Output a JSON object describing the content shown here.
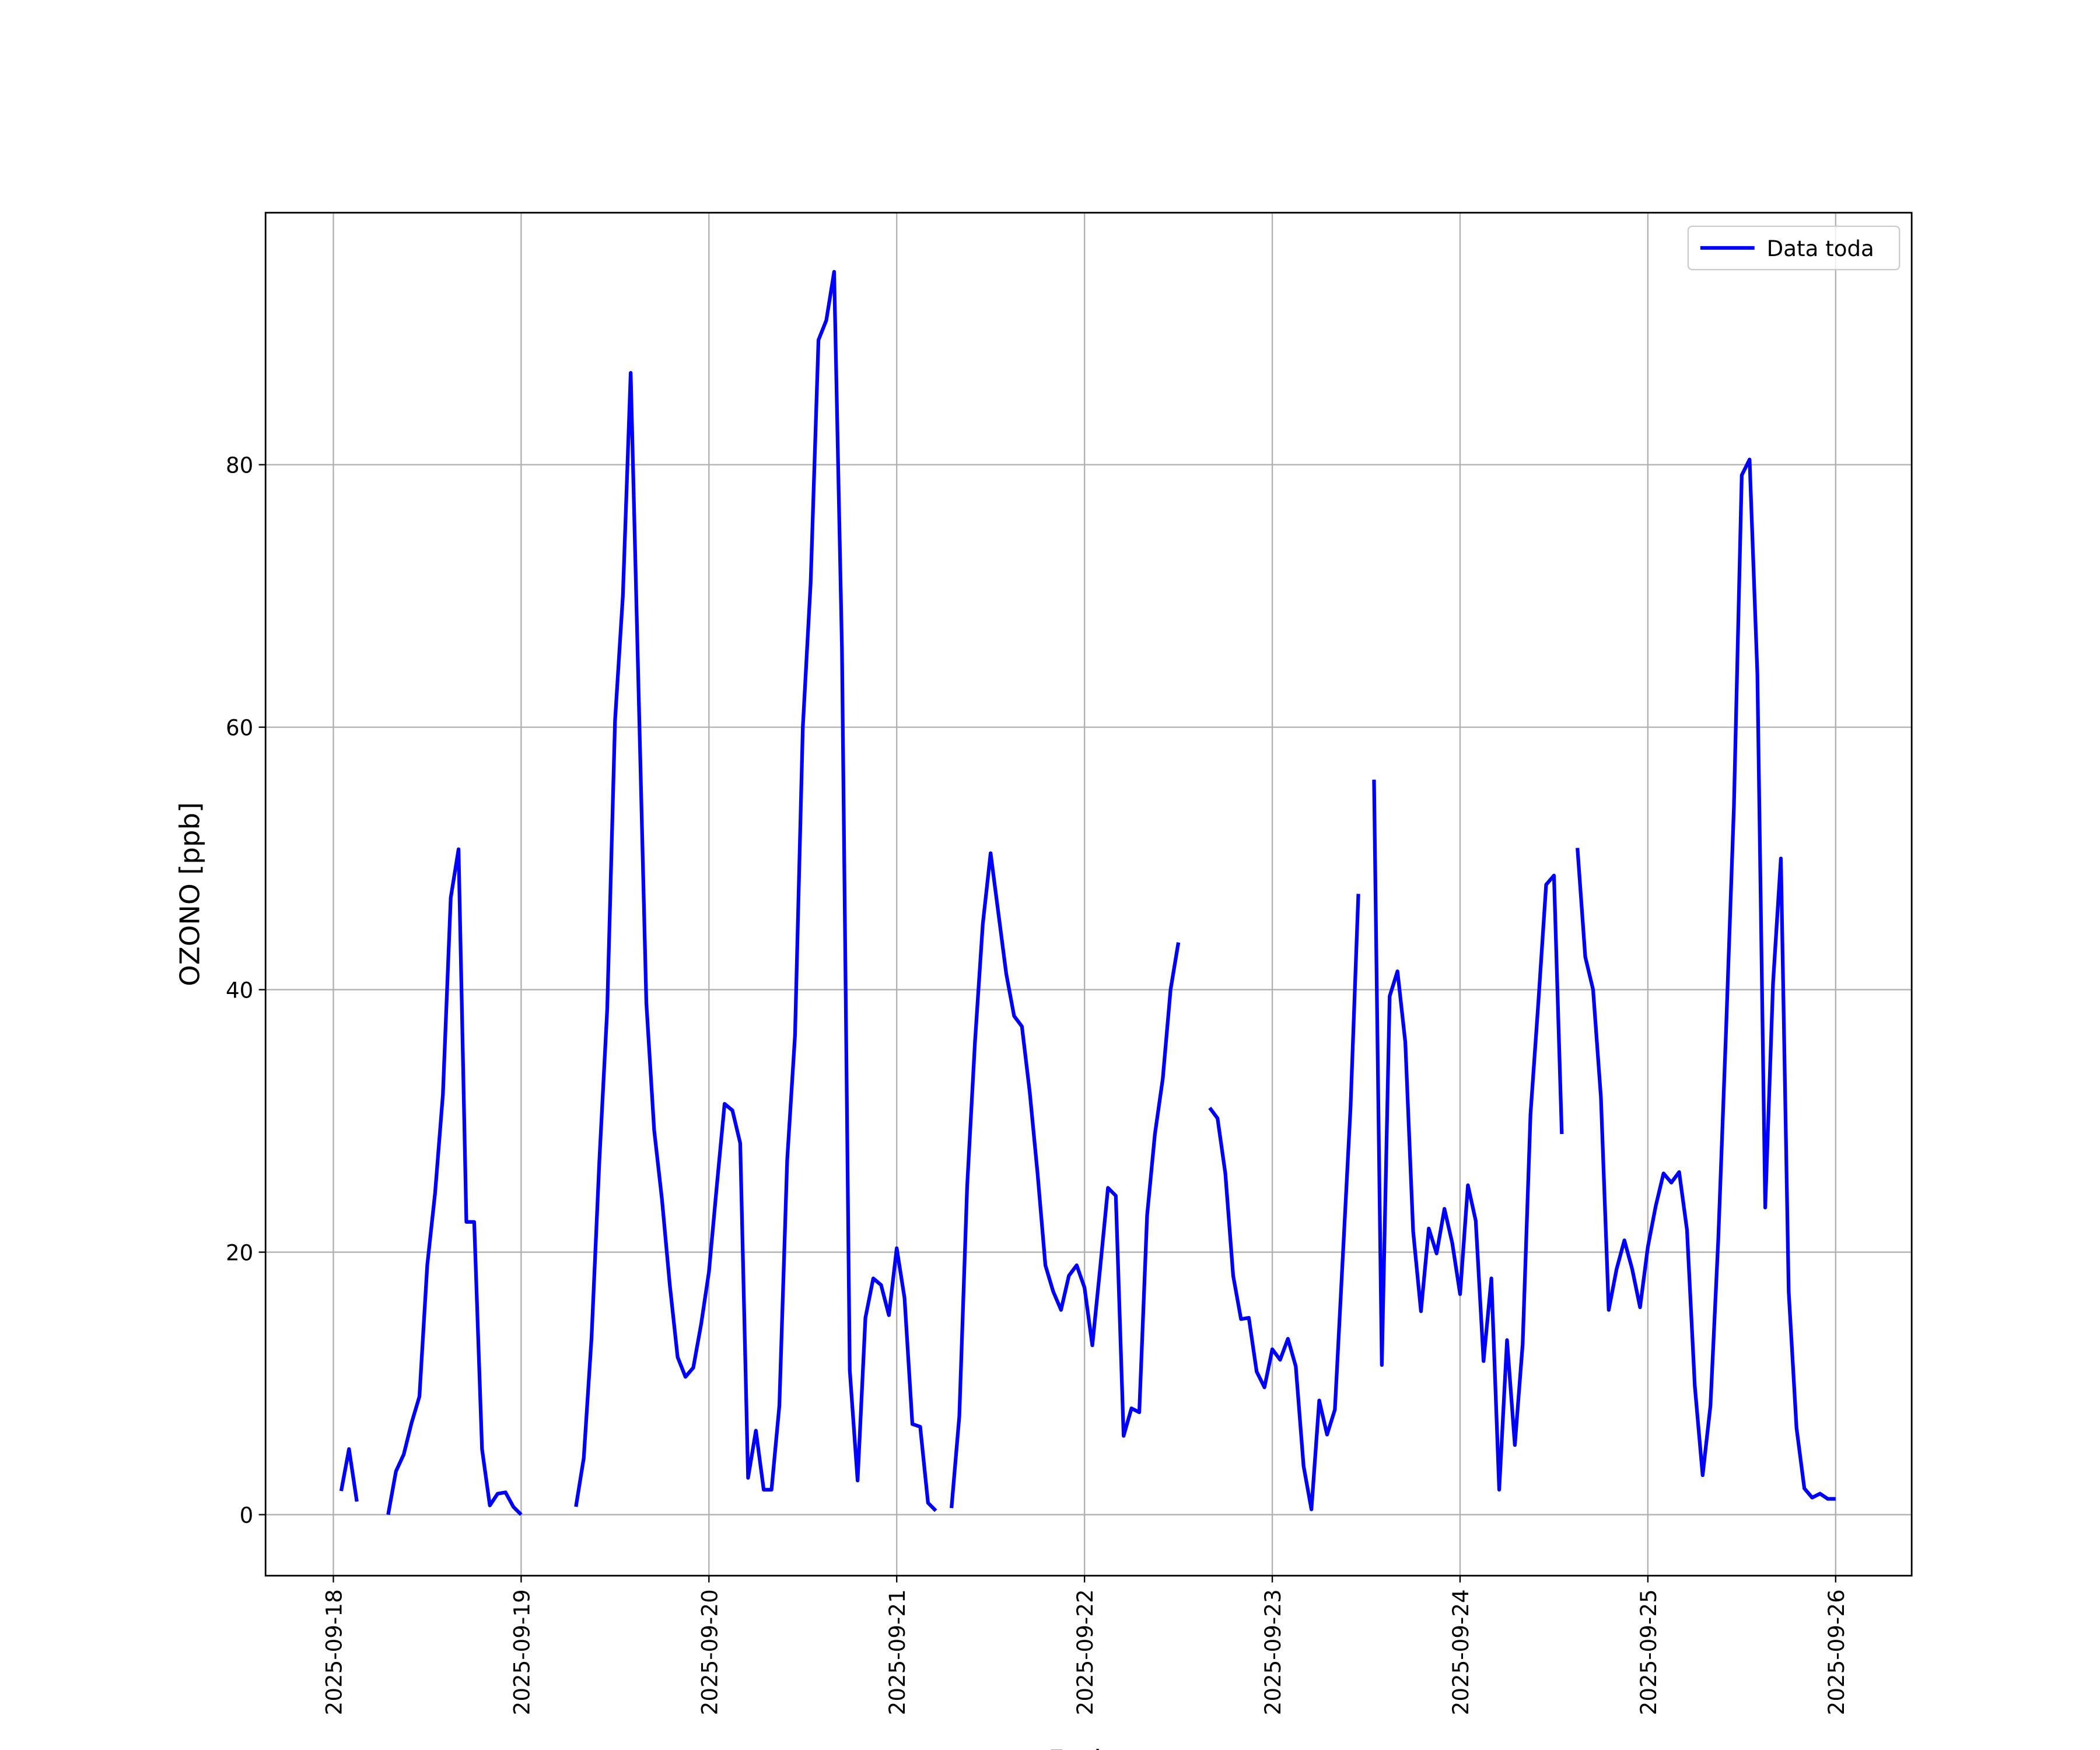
{
  "chart_data": {
    "type": "line",
    "xlabel": "Fecha",
    "ylabel": "OZONO [ppb]",
    "x": [
      "2025-09-18 01:00",
      "2025-09-18 02:00",
      "2025-09-18 03:00",
      "2025-09-18 04:00",
      "2025-09-18 05:00",
      "2025-09-18 06:00",
      "2025-09-18 07:00",
      "2025-09-18 08:00",
      "2025-09-18 09:00",
      "2025-09-18 10:00",
      "2025-09-18 11:00",
      "2025-09-18 12:00",
      "2025-09-18 13:00",
      "2025-09-18 14:00",
      "2025-09-18 15:00",
      "2025-09-18 16:00",
      "2025-09-18 17:00",
      "2025-09-18 18:00",
      "2025-09-18 19:00",
      "2025-09-18 20:00",
      "2025-09-18 21:00",
      "2025-09-18 22:00",
      "2025-09-18 23:00",
      "2025-09-19 00:00",
      "2025-09-19 01:00",
      "2025-09-19 02:00",
      "2025-09-19 03:00",
      "2025-09-19 04:00",
      "2025-09-19 05:00",
      "2025-09-19 06:00",
      "2025-09-19 07:00",
      "2025-09-19 08:00",
      "2025-09-19 09:00",
      "2025-09-19 10:00",
      "2025-09-19 11:00",
      "2025-09-19 12:00",
      "2025-09-19 13:00",
      "2025-09-19 14:00",
      "2025-09-19 15:00",
      "2025-09-19 16:00",
      "2025-09-19 17:00",
      "2025-09-19 18:00",
      "2025-09-19 19:00",
      "2025-09-19 20:00",
      "2025-09-19 21:00",
      "2025-09-19 22:00",
      "2025-09-19 23:00",
      "2025-09-20 00:00",
      "2025-09-20 01:00",
      "2025-09-20 02:00",
      "2025-09-20 03:00",
      "2025-09-20 04:00",
      "2025-09-20 05:00",
      "2025-09-20 06:00",
      "2025-09-20 07:00",
      "2025-09-20 08:00",
      "2025-09-20 09:00",
      "2025-09-20 10:00",
      "2025-09-20 11:00",
      "2025-09-20 12:00",
      "2025-09-20 13:00",
      "2025-09-20 14:00",
      "2025-09-20 15:00",
      "2025-09-20 16:00",
      "2025-09-20 17:00",
      "2025-09-20 18:00",
      "2025-09-20 19:00",
      "2025-09-20 20:00",
      "2025-09-20 21:00",
      "2025-09-20 22:00",
      "2025-09-20 23:00",
      "2025-09-21 00:00",
      "2025-09-21 01:00",
      "2025-09-21 02:00",
      "2025-09-21 03:00",
      "2025-09-21 04:00",
      "2025-09-21 05:00",
      "2025-09-21 06:00",
      "2025-09-21 07:00",
      "2025-09-21 08:00",
      "2025-09-21 09:00",
      "2025-09-21 10:00",
      "2025-09-21 11:00",
      "2025-09-21 12:00",
      "2025-09-21 13:00",
      "2025-09-21 14:00",
      "2025-09-21 15:00",
      "2025-09-21 16:00",
      "2025-09-21 17:00",
      "2025-09-21 18:00",
      "2025-09-21 19:00",
      "2025-09-21 20:00",
      "2025-09-21 21:00",
      "2025-09-21 22:00",
      "2025-09-21 23:00",
      "2025-09-22 00:00",
      "2025-09-22 01:00",
      "2025-09-22 02:00",
      "2025-09-22 03:00",
      "2025-09-22 04:00",
      "2025-09-22 05:00",
      "2025-09-22 06:00",
      "2025-09-22 07:00",
      "2025-09-22 08:00",
      "2025-09-22 09:00",
      "2025-09-22 10:00",
      "2025-09-22 11:00",
      "2025-09-22 12:00",
      "2025-09-22 13:00",
      "2025-09-22 14:00",
      "2025-09-22 15:00",
      "2025-09-22 16:00",
      "2025-09-22 17:00",
      "2025-09-22 18:00",
      "2025-09-22 19:00",
      "2025-09-22 20:00",
      "2025-09-22 21:00",
      "2025-09-22 22:00",
      "2025-09-22 23:00",
      "2025-09-23 00:00",
      "2025-09-23 01:00",
      "2025-09-23 02:00",
      "2025-09-23 03:00",
      "2025-09-23 04:00",
      "2025-09-23 05:00",
      "2025-09-23 06:00",
      "2025-09-23 07:00",
      "2025-09-23 08:00",
      "2025-09-23 09:00",
      "2025-09-23 10:00",
      "2025-09-23 11:00",
      "2025-09-23 12:00",
      "2025-09-23 13:00",
      "2025-09-23 14:00",
      "2025-09-23 15:00",
      "2025-09-23 16:00",
      "2025-09-23 17:00",
      "2025-09-23 18:00",
      "2025-09-23 19:00",
      "2025-09-23 20:00",
      "2025-09-23 21:00",
      "2025-09-23 22:00",
      "2025-09-23 23:00",
      "2025-09-24 00:00",
      "2025-09-24 01:00",
      "2025-09-24 02:00",
      "2025-09-24 03:00",
      "2025-09-24 04:00",
      "2025-09-24 05:00",
      "2025-09-24 06:00",
      "2025-09-24 07:00",
      "2025-09-24 08:00",
      "2025-09-24 09:00",
      "2025-09-24 10:00",
      "2025-09-24 11:00",
      "2025-09-24 12:00",
      "2025-09-24 13:00",
      "2025-09-24 14:00",
      "2025-09-24 15:00",
      "2025-09-24 16:00",
      "2025-09-24 17:00",
      "2025-09-24 18:00",
      "2025-09-24 19:00",
      "2025-09-24 20:00",
      "2025-09-24 21:00",
      "2025-09-24 22:00",
      "2025-09-24 23:00",
      "2025-09-25 00:00",
      "2025-09-25 01:00",
      "2025-09-25 02:00",
      "2025-09-25 03:00",
      "2025-09-25 04:00",
      "2025-09-25 05:00",
      "2025-09-25 06:00",
      "2025-09-25 07:00",
      "2025-09-25 08:00",
      "2025-09-25 09:00",
      "2025-09-25 10:00",
      "2025-09-25 11:00",
      "2025-09-25 12:00",
      "2025-09-25 13:00",
      "2025-09-25 14:00",
      "2025-09-25 15:00",
      "2025-09-25 16:00",
      "2025-09-25 17:00",
      "2025-09-25 18:00",
      "2025-09-25 19:00",
      "2025-09-25 20:00",
      "2025-09-25 21:00",
      "2025-09-25 22:00",
      "2025-09-25 23:00",
      "2025-09-26 00:00"
    ],
    "series": [
      {
        "name": "Data toda",
        "color": "#0000ff",
        "values": [
          1.8,
          5,
          1,
          null,
          null,
          null,
          0,
          3.3,
          4.6,
          7,
          9,
          19,
          24.5,
          32,
          47,
          50.7,
          22.3,
          22.3,
          5,
          0.7,
          1.6,
          1.7,
          0.6,
          0,
          null,
          null,
          null,
          null,
          null,
          null,
          0.6,
          4.3,
          13.5,
          27,
          38.5,
          60.5,
          70,
          87,
          63,
          39,
          29.3,
          24,
          17.5,
          12,
          10.5,
          11.2,
          14.5,
          18.5,
          25,
          31.3,
          30.8,
          28.3,
          2.8,
          6.4,
          1.9,
          1.9,
          8.3,
          27,
          36.5,
          60,
          71,
          89.5,
          91,
          94.7,
          66,
          11,
          2.6,
          15,
          18,
          17.5,
          15.2,
          20.3,
          16.5,
          6.9,
          6.7,
          0.9,
          0.3,
          null,
          0.5,
          7.5,
          25,
          36,
          45,
          50.4,
          45.8,
          41.2,
          38,
          37.2,
          32.2,
          26,
          19,
          17,
          15.6,
          18.2,
          19,
          17.3,
          12.9,
          18.8,
          24.9,
          24.3,
          6,
          8.1,
          7.8,
          22.8,
          29,
          33.2,
          40,
          43.6,
          null,
          null,
          null,
          31,
          30.2,
          26,
          18.2,
          14.9,
          15,
          10.9,
          9.7,
          12.6,
          11.8,
          13.4,
          11.3,
          3.7,
          0.4,
          8.7,
          6.1,
          8,
          19.5,
          31,
          47.3,
          null,
          56,
          11.4,
          39.5,
          41.4,
          36,
          21.6,
          15.5,
          21.8,
          19.9,
          23.3,
          20.7,
          16.8,
          25.1,
          22.4,
          11.7,
          18,
          1.9,
          13.3,
          5.3,
          13,
          30.5,
          39,
          48,
          48.7,
          29,
          null,
          50.8,
          42.5,
          40,
          31.8,
          15.6,
          18.7,
          20.9,
          18.7,
          15.8,
          20.4,
          23.5,
          26,
          25.3,
          26.1,
          21.7,
          9.8,
          3,
          8.3,
          21,
          37,
          54,
          79.2,
          80.4,
          64,
          23.4,
          40.5,
          50,
          17,
          6.6,
          2,
          1.3,
          1.6,
          1.2,
          1.2
        ]
      }
    ],
    "xlim": [
      "2025-09-17 15:20",
      "2025-09-26 09:43"
    ],
    "xticks": [
      "2025-09-18",
      "2025-09-19",
      "2025-09-20",
      "2025-09-21",
      "2025-09-22",
      "2025-09-23",
      "2025-09-24",
      "2025-09-25",
      "2025-09-26"
    ],
    "ylim": [
      -4.65,
      99.2
    ],
    "yticks": [
      0,
      20,
      40,
      60,
      80
    ],
    "grid": true,
    "legend": "upper right"
  }
}
